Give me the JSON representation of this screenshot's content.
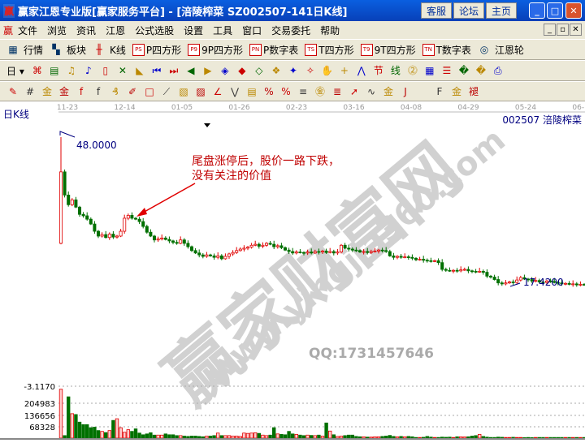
{
  "window": {
    "title": "赢家江恩专业版[赢家服务平台] - [涪陵榨菜   SZ002507-141日K线]",
    "logo": "赢",
    "buttons": [
      "客服",
      "论坛",
      "主页"
    ]
  },
  "menu": {
    "logo": "赢",
    "items": [
      "文件",
      "浏览",
      "资讯",
      "江恩",
      "公式选股",
      "设置",
      "工具",
      "窗口",
      "交易委托",
      "帮助"
    ]
  },
  "toolbar1": [
    {
      "icon": "grid-icon",
      "label": "行情"
    },
    {
      "icon": "blocks-icon",
      "label": "板块"
    },
    {
      "icon": "candles-icon",
      "label": "K线"
    },
    {
      "icon": "PS",
      "label": "P四方形"
    },
    {
      "icon": "P9",
      "label": "9P四方形"
    },
    {
      "icon": "PN",
      "label": "P数字表"
    },
    {
      "icon": "TS",
      "label": "T四方形"
    },
    {
      "icon": "T9",
      "label": "9T四方形"
    },
    {
      "icon": "TN",
      "label": "T数字表"
    },
    {
      "icon": "wheel-icon",
      "label": "江恩轮"
    }
  ],
  "toolbar2": {
    "period": "日",
    "icons": [
      "chart-type",
      "calendar",
      "wave3",
      "wave9",
      "candle",
      "gann",
      "triangle",
      "first",
      "last",
      "prev",
      "next",
      "diamond1",
      "diamond2",
      "diamond3",
      "diamond4",
      "diamond5",
      "diamond6",
      "hand",
      "crosshair",
      "line",
      "node",
      "ray",
      "calendar21",
      "calculator",
      "notes",
      "save",
      "print",
      "exit"
    ]
  },
  "toolbar3": {
    "icons": [
      "pen",
      "hash",
      "gold1",
      "gold2",
      "fork",
      "spiral",
      "brush",
      "box",
      "fan",
      "square",
      "angles",
      "arc",
      "v",
      "table",
      "pct-red",
      "pct",
      "pct-lines",
      "gold-circle",
      "gold-lines",
      "arrow",
      "sine",
      "gold-base",
      "j",
      "f",
      "gold-fan",
      "tui",
      "sheng",
      "si"
    ]
  },
  "chart": {
    "period_label": "日K线",
    "stock_label": "002507  涪陵榨菜",
    "dates": [
      "11-23",
      "12-14",
      "01-05",
      "01-26",
      "02-23",
      "03-16",
      "04-08",
      "04-29",
      "05-24",
      "06-15"
    ],
    "high_label": "48.0000",
    "low_label": "17.4200",
    "annotation": [
      "尾盘涨停后，股价一路下跌，",
      "没有关注的价值"
    ],
    "watermark_cn": "赢家财富网",
    "watermark_url": "www.yingjia360.com",
    "watermark_qq": "QQ:1731457646",
    "colors": {
      "up": "#e00000",
      "down": "#007000",
      "label": "#000080",
      "annotation": "#c00000"
    }
  },
  "volume": {
    "labels": [
      "-3.1170",
      "204983",
      "136656",
      "68328"
    ]
  },
  "chart_data": {
    "type": "candlestick",
    "first_open": 26,
    "closes": [
      40.8,
      36,
      34,
      35,
      33.5,
      32,
      31.7,
      31,
      30,
      28.5,
      27.5,
      27.8,
      27.2,
      27.9,
      27.3,
      27.5,
      28.5,
      31.2,
      31.8,
      31.2,
      31,
      30.5,
      29.5,
      28.3,
      27.5,
      26.7,
      26.9,
      27.1,
      26.8,
      26.5,
      26.2,
      26,
      26.7,
      26,
      25.3,
      24.5,
      24,
      23.6,
      23.3,
      23.6,
      23.4,
      23.1,
      23.4,
      22.8,
      23.3,
      23.8,
      24.1,
      24.5,
      24.8,
      25,
      25.2,
      25.6,
      25.8,
      25.4,
      25.6,
      26,
      25.8,
      25.3,
      25.5,
      25.1,
      24.6,
      24.3,
      24,
      24.2,
      24.1,
      24,
      24.2,
      24,
      24.3,
      24.2,
      24.4,
      24.1,
      24.3,
      24,
      24.2,
      25.6,
      25,
      24.8,
      24.6,
      24.5,
      24.2,
      24.3,
      24.1,
      24.3,
      24.4,
      24.6,
      24.5,
      24.3,
      23.4,
      23.1,
      23.3,
      23.1,
      23.2,
      23.1,
      22.9,
      22.6,
      22.7,
      22.5,
      22.4,
      22.3,
      22.4,
      22,
      20.6,
      20.4,
      20.3,
      20.4,
      20.3,
      20.5,
      20.6,
      20.3,
      20.2,
      20.1,
      20.2,
      20,
      19.2,
      19,
      18.5,
      17.8,
      17.6,
      17.8,
      18,
      17.9,
      18.4,
      18.9,
      18.6,
      18.5,
      18.2,
      18.3,
      18,
      17.9,
      18.2,
      18.1,
      17.9,
      17.8,
      17.6,
      17.7,
      17.5,
      17.6,
      17.4,
      17.5,
      17.4
    ],
    "volumes": [
      290000,
      15000,
      245000,
      145000,
      140000,
      95000,
      80000,
      80000,
      62000,
      65000,
      45000,
      40000,
      33000,
      45000,
      105000,
      115000,
      62000,
      35000,
      50000,
      40000,
      55000,
      30000,
      20000,
      25000,
      32000,
      18000,
      18000,
      18000,
      25000,
      20000,
      20000,
      15000,
      15000,
      12000,
      10000,
      12000,
      12000,
      10000,
      8000,
      12000,
      12000,
      15000,
      30000,
      15000,
      15000,
      15000,
      12000,
      12000,
      10000,
      30000,
      28000,
      30000,
      32000,
      28000,
      18000,
      15000,
      18000,
      62000,
      25000,
      22000,
      20000,
      40000,
      25000,
      22000,
      18000,
      15000,
      18000,
      16000,
      15000,
      18000,
      12000,
      90000,
      42000,
      20000,
      10000,
      12000,
      15000,
      18000,
      18000,
      10000,
      8000,
      8000,
      6000,
      6000,
      8000,
      8000,
      10000,
      12000,
      16000,
      10000,
      8000,
      10000,
      8000,
      10000,
      8000,
      4000,
      4000,
      5000,
      10000,
      6000,
      4000,
      4000,
      6000,
      5000,
      6000,
      4000,
      8000,
      8000,
      7000,
      8000,
      12000,
      15000,
      22000,
      10000,
      6000,
      4000,
      4000,
      6000,
      5000,
      4000,
      4000,
      5000,
      4000,
      4000,
      3000,
      4000,
      3000,
      4000,
      4000,
      4000,
      4000,
      4000,
      4000,
      4000,
      4000,
      4000,
      4000,
      4000,
      4000,
      4000,
      4000
    ],
    "price_range": [
      17.42,
      48
    ],
    "xlabel": "",
    "ylabel": ""
  }
}
